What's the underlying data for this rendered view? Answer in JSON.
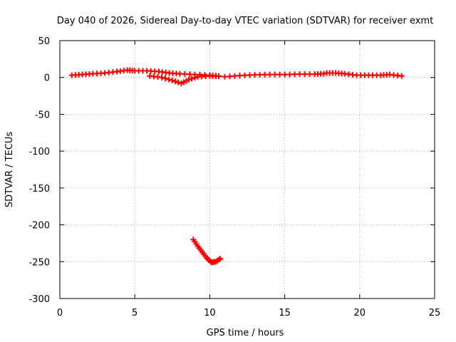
{
  "chart_data": {
    "type": "scatter",
    "title": "Day 040 of 2026, Sidereal Day-to-day VTEC variation (SDTVAR) for receiver exmt",
    "xlabel": "GPS time / hours",
    "ylabel": "SDTVAR / TECUs",
    "xlim": [
      0,
      25
    ],
    "ylim": [
      -300,
      50
    ],
    "xticks": [
      "0",
      "5",
      "10",
      "15",
      "20",
      "25"
    ],
    "yticks": [
      "50",
      "0",
      "-50",
      "-100",
      "-150",
      "-200",
      "-250",
      "-300"
    ],
    "grid": true,
    "color": "#ff0000",
    "series": [
      {
        "points": [
          [
            0.8,
            3
          ],
          [
            1.5,
            4
          ],
          [
            2.2,
            5
          ],
          [
            3.0,
            6
          ],
          [
            3.8,
            8
          ],
          [
            4.5,
            10
          ],
          [
            5.0,
            9
          ],
          [
            5.8,
            9
          ],
          [
            6.6,
            8
          ],
          [
            7.3,
            6
          ],
          [
            8.0,
            5
          ],
          [
            9.0,
            4
          ],
          [
            10.0,
            3
          ],
          [
            10.6,
            2
          ]
        ]
      },
      {
        "points": [
          [
            6.0,
            2
          ],
          [
            6.8,
            0
          ],
          [
            7.5,
            -4
          ],
          [
            8.1,
            -8
          ],
          [
            8.6,
            -3
          ],
          [
            9.2,
            1
          ],
          [
            10.0,
            2
          ],
          [
            10.6,
            1.5
          ]
        ]
      },
      {
        "points": [
          [
            11.0,
            1
          ],
          [
            12.0,
            2.5
          ],
          [
            13.0,
            3.5
          ],
          [
            14.0,
            4
          ],
          [
            15.0,
            4
          ],
          [
            16.0,
            4.5
          ],
          [
            17.0,
            4.5
          ],
          [
            17.6,
            5
          ]
        ]
      },
      {
        "points": [
          [
            17.8,
            6
          ],
          [
            18.4,
            6
          ],
          [
            19.0,
            5
          ],
          [
            19.8,
            3
          ],
          [
            20.6,
            3
          ],
          [
            21.4,
            3
          ],
          [
            22.0,
            4
          ],
          [
            22.8,
            2
          ]
        ]
      },
      {
        "points": [
          [
            8.9,
            -220
          ],
          [
            9.2,
            -229
          ],
          [
            9.5,
            -237
          ],
          [
            9.8,
            -245
          ],
          [
            10.1,
            -251
          ],
          [
            10.4,
            -250
          ],
          [
            10.7,
            -246
          ]
        ]
      }
    ]
  }
}
